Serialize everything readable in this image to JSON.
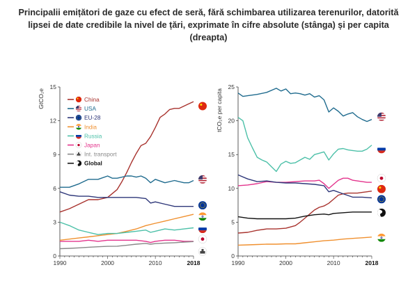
{
  "title": "Principalii emițători de gaze cu efect de seră, fără schimbarea utilizarea terenurilor, datorită lipsei de date credibile la nivel de țări, exprimate în cifre absolute (stânga) și per capita (dreapta)",
  "colors": {
    "China": "#a8322d",
    "USA": "#1f6b8e",
    "EU-28": "#2e3779",
    "India": "#f0902f",
    "Russia": "#4cc0a8",
    "Japan": "#e3338c",
    "Int. transport": "#888888",
    "Global": "#111111"
  },
  "legend": [
    {
      "name": "China",
      "icon": "china-flag-icon"
    },
    {
      "name": "USA",
      "icon": "usa-flag-icon"
    },
    {
      "name": "EU-28",
      "icon": "eu-flag-icon"
    },
    {
      "name": "India",
      "icon": "india-flag-icon"
    },
    {
      "name": "Russia",
      "icon": "russia-flag-icon"
    },
    {
      "name": "Japan",
      "icon": "japan-flag-icon"
    },
    {
      "name": "Int. transport",
      "icon": "ship-icon"
    },
    {
      "name": "Global",
      "icon": "globe-icon"
    }
  ],
  "chart_data": [
    {
      "type": "line",
      "ylabel": "GtCO₂e",
      "ylim": [
        0,
        15
      ],
      "yticks": [
        0,
        3,
        6,
        9,
        12,
        15
      ],
      "xlim": [
        1990,
        2018
      ],
      "xticks": [
        1990,
        2000,
        2010,
        2018
      ],
      "legend_position": "top-left",
      "end_icons": [
        "China",
        "USA",
        "EU-28",
        "India",
        "Russia",
        "Japan",
        "Int. transport"
      ],
      "series": [
        {
          "name": "China",
          "x": [
            1990,
            1992,
            1994,
            1996,
            1998,
            2000,
            2002,
            2003,
            2004,
            2005,
            2006,
            2007,
            2008,
            2009,
            2010,
            2011,
            2012,
            2013,
            2014,
            2015,
            2016,
            2017,
            2018
          ],
          "y": [
            3.9,
            4.2,
            4.6,
            5.0,
            5.0,
            5.2,
            5.9,
            6.6,
            7.4,
            8.3,
            9.1,
            9.8,
            10.0,
            10.6,
            11.4,
            12.3,
            12.6,
            13.0,
            13.1,
            13.1,
            13.3,
            13.5,
            13.7
          ]
        },
        {
          "name": "USA",
          "x": [
            1990,
            1992,
            1994,
            1996,
            1998,
            2000,
            2001,
            2002,
            2004,
            2005,
            2006,
            2007,
            2008,
            2009,
            2010,
            2012,
            2014,
            2016,
            2017,
            2018
          ],
          "y": [
            6.1,
            6.1,
            6.4,
            6.8,
            6.8,
            7.1,
            6.9,
            6.9,
            7.1,
            7.1,
            7.0,
            7.1,
            6.9,
            6.5,
            6.8,
            6.5,
            6.7,
            6.5,
            6.5,
            6.7
          ]
        },
        {
          "name": "EU-28",
          "x": [
            1990,
            1992,
            1994,
            1996,
            1998,
            2000,
            2002,
            2004,
            2006,
            2008,
            2009,
            2010,
            2012,
            2014,
            2016,
            2018
          ],
          "y": [
            5.7,
            5.4,
            5.3,
            5.3,
            5.2,
            5.2,
            5.2,
            5.2,
            5.2,
            5.1,
            4.7,
            4.8,
            4.6,
            4.4,
            4.4,
            4.4
          ]
        },
        {
          "name": "India",
          "x": [
            1990,
            1992,
            1994,
            1996,
            1998,
            2000,
            2002,
            2004,
            2006,
            2008,
            2010,
            2012,
            2014,
            2016,
            2018
          ],
          "y": [
            1.4,
            1.5,
            1.6,
            1.7,
            1.8,
            1.9,
            2.0,
            2.2,
            2.4,
            2.7,
            2.9,
            3.1,
            3.3,
            3.5,
            3.7
          ]
        },
        {
          "name": "Russia",
          "x": [
            1990,
            1992,
            1994,
            1996,
            1998,
            2000,
            2002,
            2004,
            2006,
            2008,
            2009,
            2010,
            2012,
            2014,
            2016,
            2018
          ],
          "y": [
            3.0,
            2.7,
            2.3,
            2.1,
            1.9,
            2.0,
            2.0,
            2.1,
            2.2,
            2.3,
            2.1,
            2.2,
            2.4,
            2.3,
            2.4,
            2.5
          ]
        },
        {
          "name": "Japan",
          "x": [
            1990,
            1992,
            1994,
            1996,
            1998,
            2000,
            2002,
            2004,
            2006,
            2008,
            2009,
            2010,
            2012,
            2014,
            2016,
            2018
          ],
          "y": [
            1.3,
            1.3,
            1.3,
            1.4,
            1.3,
            1.4,
            1.4,
            1.4,
            1.4,
            1.3,
            1.2,
            1.3,
            1.4,
            1.4,
            1.3,
            1.3
          ]
        },
        {
          "name": "Int. transport",
          "x": [
            1990,
            1992,
            1994,
            1996,
            1998,
            2000,
            2002,
            2004,
            2006,
            2008,
            2009,
            2010,
            2012,
            2014,
            2016,
            2018
          ],
          "y": [
            0.65,
            0.68,
            0.72,
            0.78,
            0.82,
            0.86,
            0.87,
            0.95,
            1.05,
            1.12,
            1.05,
            1.1,
            1.15,
            1.18,
            1.23,
            1.28
          ]
        }
      ]
    },
    {
      "type": "line",
      "ylabel": "tCO₂e per capita",
      "ylim": [
        0,
        25
      ],
      "yticks": [
        0,
        5,
        10,
        15,
        20,
        25
      ],
      "xlim": [
        1990,
        2018
      ],
      "xticks": [
        1990,
        2000,
        2010,
        2018
      ],
      "end_icons": [
        "USA",
        "Russia",
        "Japan",
        "China",
        "EU-28",
        "Global",
        "India"
      ],
      "series": [
        {
          "name": "USA",
          "x": [
            1990,
            1991,
            1992,
            1994,
            1996,
            1998,
            1999,
            2000,
            2001,
            2002,
            2003,
            2004,
            2005,
            2006,
            2007,
            2008,
            2009,
            2010,
            2011,
            2012,
            2013,
            2014,
            2015,
            2016,
            2017,
            2018
          ],
          "y": [
            24.1,
            23.6,
            23.7,
            23.9,
            24.2,
            24.8,
            24.4,
            24.7,
            24.0,
            24.1,
            24.0,
            23.8,
            24.0,
            23.5,
            23.7,
            23.1,
            21.3,
            21.9,
            21.4,
            20.7,
            21.0,
            21.2,
            20.6,
            20.2,
            19.9,
            20.2
          ]
        },
        {
          "name": "Russia",
          "x": [
            1990,
            1991,
            1992,
            1993,
            1994,
            1995,
            1996,
            1997,
            1998,
            1999,
            2000,
            2001,
            2002,
            2003,
            2004,
            2005,
            2006,
            2007,
            2008,
            2009,
            2010,
            2011,
            2012,
            2013,
            2014,
            2015,
            2016,
            2017,
            2018
          ],
          "y": [
            20.5,
            20.0,
            17.5,
            16.0,
            14.6,
            14.2,
            13.9,
            13.2,
            12.5,
            13.6,
            14.0,
            13.7,
            13.8,
            14.2,
            14.6,
            14.3,
            15.0,
            15.2,
            15.4,
            14.2,
            15.1,
            15.8,
            15.9,
            15.7,
            15.6,
            15.5,
            15.5,
            15.8,
            16.4
          ]
        },
        {
          "name": "Japan",
          "x": [
            1990,
            1992,
            1994,
            1996,
            1998,
            2000,
            2002,
            2004,
            2006,
            2007,
            2008,
            2009,
            2010,
            2011,
            2012,
            2013,
            2014,
            2015,
            2016,
            2017,
            2018
          ],
          "y": [
            10.4,
            10.5,
            10.7,
            11.0,
            10.9,
            10.9,
            11.0,
            11.1,
            11.1,
            11.2,
            10.7,
            10.0,
            10.6,
            11.2,
            11.5,
            11.5,
            11.2,
            11.1,
            11.0,
            10.9,
            10.9
          ]
        },
        {
          "name": "China",
          "x": [
            1990,
            1992,
            1994,
            1996,
            1998,
            2000,
            2002,
            2003,
            2004,
            2005,
            2006,
            2007,
            2008,
            2009,
            2010,
            2011,
            2012,
            2013,
            2014,
            2015,
            2016,
            2017,
            2018
          ],
          "y": [
            3.4,
            3.5,
            3.8,
            4.0,
            4.0,
            4.1,
            4.5,
            5.0,
            5.6,
            6.2,
            6.8,
            7.2,
            7.4,
            7.8,
            8.4,
            9.0,
            9.2,
            9.3,
            9.3,
            9.3,
            9.4,
            9.5,
            9.6
          ]
        },
        {
          "name": "EU-28",
          "x": [
            1990,
            1992,
            1994,
            1996,
            1998,
            2000,
            2002,
            2004,
            2006,
            2008,
            2009,
            2010,
            2012,
            2014,
            2016,
            2018
          ],
          "y": [
            12.0,
            11.4,
            11.0,
            11.1,
            10.9,
            10.8,
            10.8,
            10.7,
            10.6,
            10.4,
            9.5,
            9.7,
            9.2,
            8.7,
            8.7,
            8.6
          ]
        },
        {
          "name": "Global",
          "x": [
            1990,
            1992,
            1994,
            1996,
            1998,
            2000,
            2002,
            2004,
            2006,
            2008,
            2009,
            2010,
            2012,
            2014,
            2016,
            2018
          ],
          "y": [
            5.8,
            5.6,
            5.5,
            5.5,
            5.5,
            5.5,
            5.6,
            5.9,
            6.1,
            6.2,
            6.1,
            6.3,
            6.4,
            6.5,
            6.5,
            6.5
          ]
        },
        {
          "name": "India",
          "x": [
            1990,
            1992,
            1994,
            1996,
            1998,
            2000,
            2002,
            2004,
            2006,
            2008,
            2010,
            2012,
            2014,
            2016,
            2018
          ],
          "y": [
            1.6,
            1.65,
            1.7,
            1.75,
            1.75,
            1.8,
            1.8,
            1.95,
            2.1,
            2.25,
            2.35,
            2.5,
            2.6,
            2.7,
            2.8
          ]
        }
      ]
    }
  ]
}
